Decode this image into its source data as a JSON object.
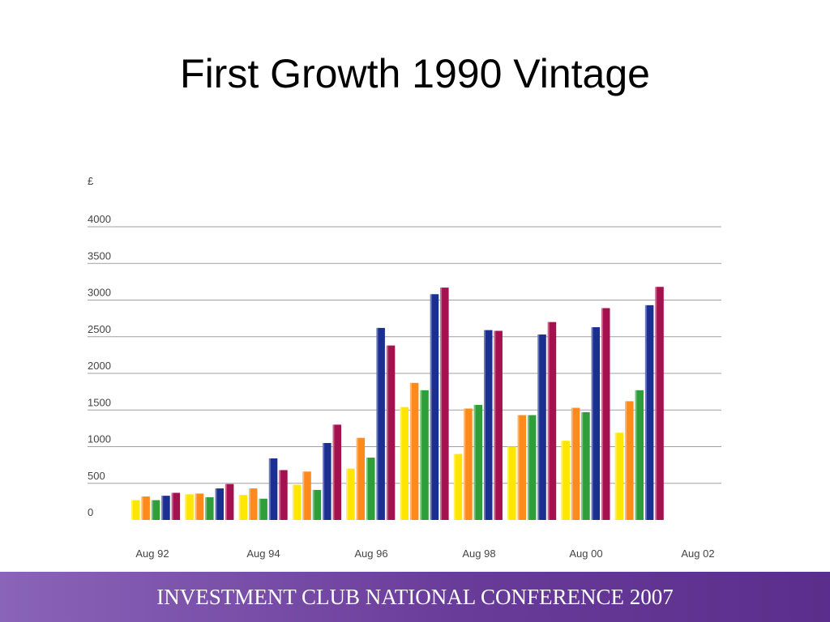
{
  "slide": {
    "title": "First Growth 1990 Vintage",
    "footer": "INVESTMENT CLUB NATIONAL CONFERENCE 2007"
  },
  "chart_data": {
    "type": "bar",
    "title": "",
    "ylabel": "£",
    "xlabel": "",
    "ylim": [
      0,
      4000
    ],
    "yticks": [
      0,
      500,
      1000,
      1500,
      2000,
      2500,
      3000,
      3500,
      4000
    ],
    "xtick_labels": [
      "Aug 92",
      "Aug 94",
      "Aug 96",
      "Aug 98",
      "Aug 00",
      "Aug 02"
    ],
    "grid": true,
    "legend": "none",
    "groups": 10,
    "series": [
      {
        "color": "#ffe600",
        "values": [
          270,
          350,
          340,
          480,
          700,
          1540,
          900,
          1000,
          1080,
          1190
        ]
      },
      {
        "color": "#ff8a1c",
        "values": [
          320,
          360,
          430,
          660,
          1120,
          1870,
          1520,
          1430,
          1530,
          1620
        ]
      },
      {
        "color": "#2e9e3a",
        "values": [
          270,
          310,
          290,
          410,
          850,
          1770,
          1570,
          1430,
          1470,
          1770
        ]
      },
      {
        "color": "#1a2f8f",
        "values": [
          330,
          430,
          840,
          1050,
          2620,
          3080,
          2590,
          2530,
          2630,
          2930
        ]
      },
      {
        "color": "#a5104e",
        "values": [
          370,
          490,
          680,
          1300,
          2380,
          3170,
          2580,
          2700,
          2890,
          3180
        ]
      }
    ]
  }
}
